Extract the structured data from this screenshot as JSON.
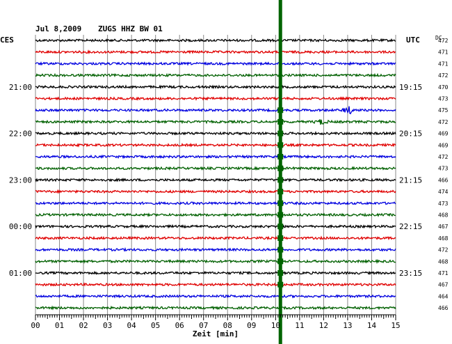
{
  "header": {
    "date": "Jul 8,2009",
    "station": "ZUGS HHZ BW 01",
    "left_zone": "CES",
    "right_zone": "UTC",
    "dc_label": "DC"
  },
  "chart_data": {
    "type": "line",
    "title": "Jul 8,2009   ZUGS HHZ BW 01",
    "xlabel": "Zeit [min]",
    "xlim": [
      0,
      15
    ],
    "x_ticks": [
      "00",
      "01",
      "02",
      "03",
      "04",
      "05",
      "06",
      "07",
      "08",
      "09",
      "10",
      "11",
      "12",
      "13",
      "14",
      "15"
    ],
    "grid": true,
    "trace_count": 24,
    "trace_colors": [
      "#000000",
      "#e00000",
      "#0000e0",
      "#006000"
    ],
    "left_hour_labels": [
      {
        "row": 4,
        "text": "21:00"
      },
      {
        "row": 8,
        "text": "22:00"
      },
      {
        "row": 12,
        "text": "23:00"
      },
      {
        "row": 16,
        "text": "00:00"
      },
      {
        "row": 20,
        "text": "01:00"
      }
    ],
    "right_time_labels": [
      {
        "row": 4,
        "text": "19:15"
      },
      {
        "row": 8,
        "text": "20:15"
      },
      {
        "row": 12,
        "text": "21:15"
      },
      {
        "row": 16,
        "text": "22:15"
      },
      {
        "row": 20,
        "text": "23:15"
      }
    ],
    "dc_values": [
      "472",
      "471",
      "471",
      "472",
      "470",
      "473",
      "475",
      "472",
      "469",
      "469",
      "472",
      "473",
      "466",
      "474",
      "473",
      "468",
      "467",
      "468",
      "472",
      "468",
      "471",
      "467",
      "464",
      "466"
    ],
    "event_marker": {
      "x_min": 10.2,
      "color": "#006400"
    },
    "events": [
      {
        "row": 6,
        "x_min": 13.05,
        "amplitude": 2.2
      },
      {
        "row": 7,
        "x_min": 11.9,
        "amplitude": 1.5
      }
    ]
  }
}
